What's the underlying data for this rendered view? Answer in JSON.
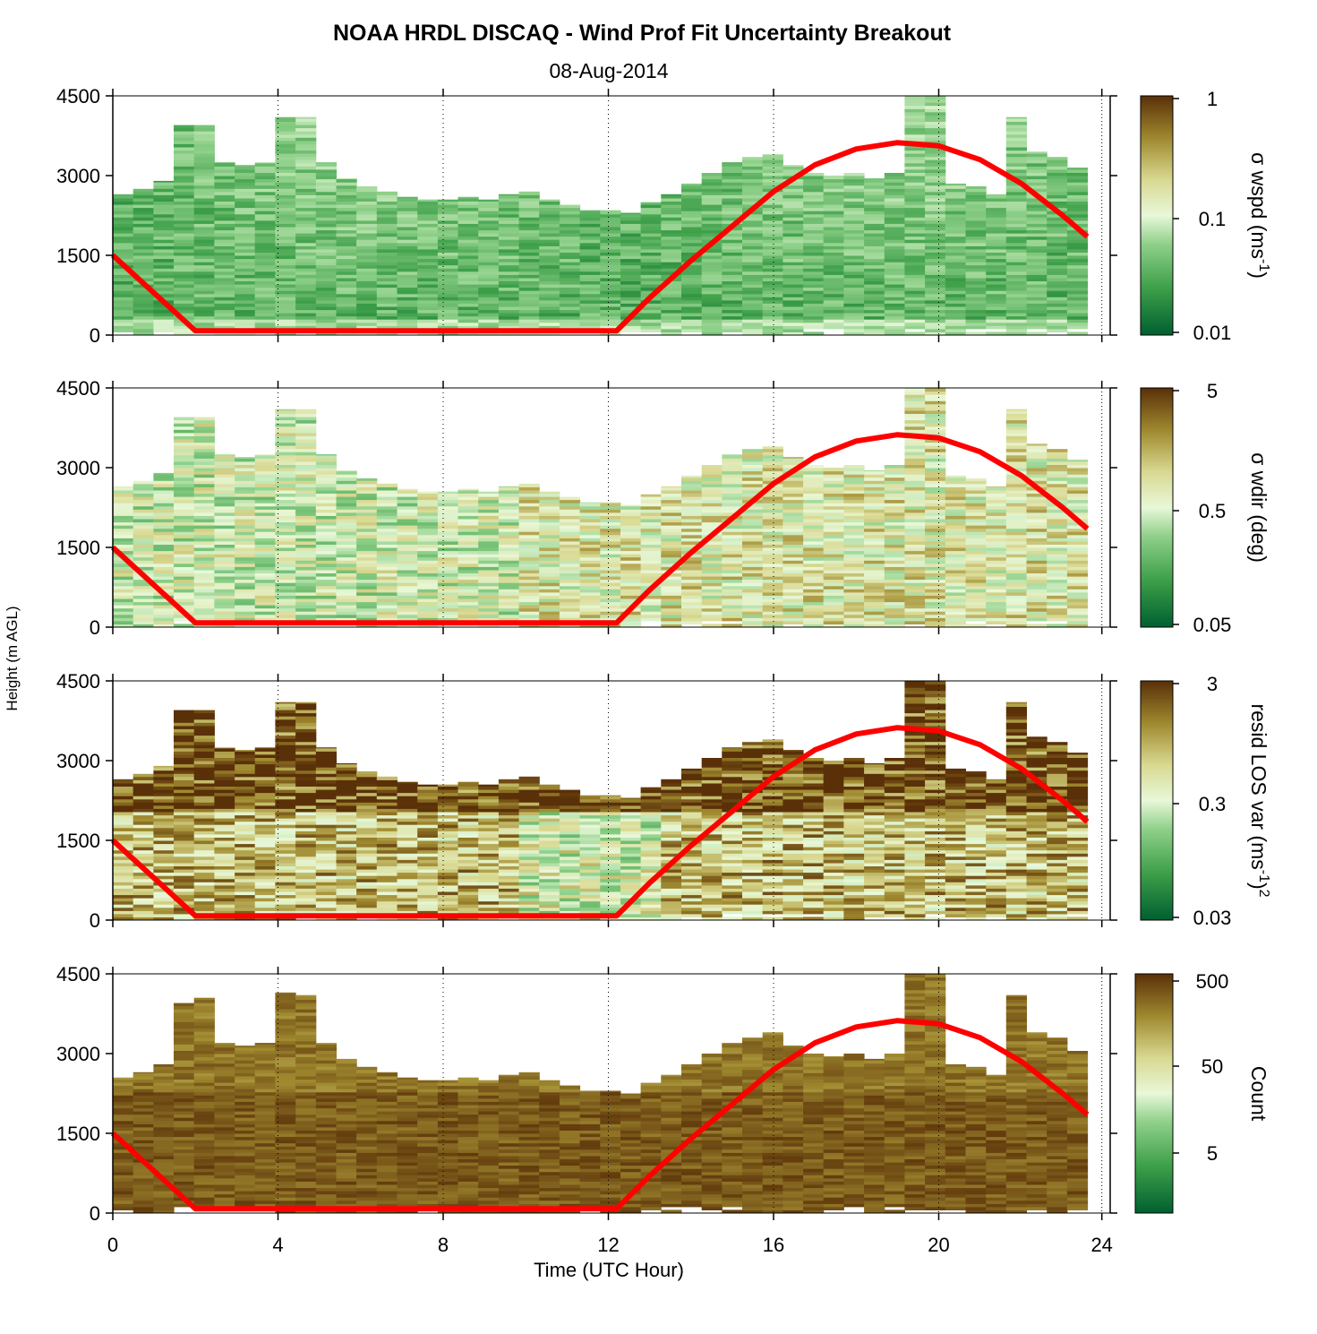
{
  "chart_data": {
    "type": "heatmap",
    "title": "NOAA HRDL DISCAQ - Wind Prof Fit Uncertainty Breakout",
    "subtitle": "08-Aug-2014",
    "xlabel": "Time (UTC Hour)",
    "ylabel": "Height (m AGL)",
    "xlim": [
      0,
      24
    ],
    "ylim": [
      0,
      4500
    ],
    "xticks": [
      "0",
      "4",
      "8",
      "12",
      "16",
      "20",
      "24"
    ],
    "yticks": [
      "0",
      "1500",
      "3000",
      "4500"
    ],
    "grid": "vertical dotted lines every 4 hours",
    "colormap": [
      "#006030",
      "#3fa04a",
      "#8fd08a",
      "#e8f8d8",
      "#d8d890",
      "#a08a30",
      "#5a3008"
    ],
    "overlay_line": {
      "color": "#ff0000",
      "points": [
        [
          0,
          1500
        ],
        [
          2,
          80
        ],
        [
          12.2,
          80
        ],
        [
          13,
          700
        ],
        [
          14,
          1400
        ],
        [
          15,
          2050
        ],
        [
          16,
          2700
        ],
        [
          17,
          3200
        ],
        [
          18,
          3500
        ],
        [
          19,
          3620
        ],
        [
          20,
          3560
        ],
        [
          21,
          3300
        ],
        [
          22,
          2850
        ],
        [
          23,
          2250
        ],
        [
          23.6,
          1850
        ]
      ]
    },
    "panels": [
      {
        "colorbar_label": "σ wspd (ms",
        "colorbar_sup": "-1",
        "colorbar_tail": ")",
        "colorbar_ticks": [
          "1",
          "0.1",
          "0.01"
        ],
        "data_tops": [
          2650,
          2750,
          2900,
          3950,
          3950,
          3250,
          3200,
          3250,
          4100,
          4100,
          3250,
          2950,
          2800,
          2700,
          2600,
          2550,
          2550,
          2600,
          2550,
          2650,
          2700,
          2550,
          2450,
          2350,
          2350,
          2300,
          2500,
          2650,
          2850,
          3050,
          3250,
          3350,
          3400,
          3200,
          3050,
          3000,
          3050,
          2950,
          3050,
          4500,
          4500,
          2850,
          2800,
          2650,
          4100,
          3450,
          3350,
          3150
        ],
        "hue": [
          0.1,
          0.12,
          0.14,
          0.16
        ]
      },
      {
        "colorbar_label": "σ wdir (deg)",
        "colorbar_sup": "",
        "colorbar_tail": "",
        "colorbar_ticks": [
          "5",
          "0.5",
          "0.05"
        ],
        "data_tops": [
          2650,
          2750,
          2900,
          3950,
          3950,
          3250,
          3200,
          3250,
          4100,
          4100,
          3250,
          2950,
          2800,
          2700,
          2600,
          2550,
          2550,
          2600,
          2550,
          2650,
          2700,
          2550,
          2450,
          2350,
          2350,
          2300,
          2500,
          2650,
          2850,
          3050,
          3250,
          3350,
          3400,
          3200,
          3050,
          3000,
          3050,
          2950,
          3050,
          4500,
          4500,
          2850,
          2800,
          2650,
          4100,
          3450,
          3350,
          3150
        ],
        "hue": [
          0.25,
          0.35,
          0.45,
          0.5
        ]
      },
      {
        "colorbar_label": "resid LOS var (ms",
        "colorbar_sup": "-1",
        "colorbar_tail": ")",
        "colorbar_sup2": "2",
        "colorbar_ticks": [
          "3",
          "0.3",
          "0.03"
        ],
        "data_tops": [
          2650,
          2750,
          2900,
          3950,
          3950,
          3250,
          3200,
          3250,
          4100,
          4100,
          3250,
          2950,
          2800,
          2700,
          2600,
          2550,
          2550,
          2600,
          2550,
          2650,
          2700,
          2550,
          2450,
          2350,
          2350,
          2300,
          2500,
          2650,
          2850,
          3050,
          3250,
          3350,
          3400,
          3200,
          3050,
          3000,
          3050,
          2950,
          3050,
          4500,
          4500,
          2850,
          2800,
          2650,
          4100,
          3450,
          3350,
          3150
        ],
        "hue": [
          0.6,
          0.5,
          0.4,
          0.75
        ]
      },
      {
        "colorbar_label": "Count",
        "colorbar_sup": "",
        "colorbar_tail": "",
        "colorbar_ticks": [
          "500",
          "50",
          "5"
        ],
        "data_tops": [
          2550,
          2650,
          2800,
          3950,
          4050,
          3200,
          3150,
          3200,
          4150,
          4100,
          3200,
          2900,
          2750,
          2650,
          2550,
          2500,
          2500,
          2550,
          2500,
          2600,
          2650,
          2500,
          2400,
          2300,
          2300,
          2250,
          2450,
          2600,
          2800,
          3000,
          3200,
          3300,
          3400,
          3150,
          3000,
          2950,
          3000,
          2900,
          3000,
          4500,
          4500,
          2800,
          2750,
          2600,
          4100,
          3400,
          3300,
          3050
        ],
        "hue": [
          0.88,
          0.9,
          0.92,
          0.95
        ]
      }
    ]
  }
}
